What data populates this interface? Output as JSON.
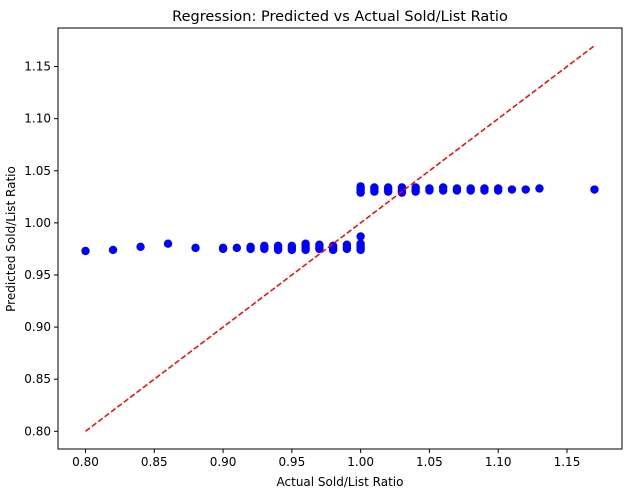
{
  "chart_data": {
    "type": "scatter",
    "title": "Regression: Predicted vs Actual Sold/List Ratio",
    "xlabel": "Actual Sold/List Ratio",
    "ylabel": "Predicted Sold/List Ratio",
    "xlim": [
      0.78,
      1.19
    ],
    "ylim": [
      0.783,
      1.187
    ],
    "xticks": [
      0.8,
      0.85,
      0.9,
      0.95,
      1.0,
      1.05,
      1.1,
      1.15
    ],
    "xtick_labels": [
      "0.80",
      "0.85",
      "0.90",
      "0.95",
      "1.00",
      "1.05",
      "1.10",
      "1.15"
    ],
    "yticks": [
      0.8,
      0.85,
      0.9,
      0.95,
      1.0,
      1.05,
      1.1,
      1.15
    ],
    "ytick_labels": [
      "0.80",
      "0.85",
      "0.90",
      "0.95",
      "1.00",
      "1.05",
      "1.10",
      "1.15"
    ],
    "grid": false,
    "colors": {
      "points": "#0000ff",
      "reference_line": "#ff0000",
      "axes": "#000000"
    },
    "reference_line": {
      "style": "dashed",
      "from": [
        0.8,
        0.8
      ],
      "to": [
        1.17,
        1.17
      ]
    },
    "series": [
      {
        "points": [
          [
            0.8,
            0.973
          ],
          [
            0.82,
            0.974
          ],
          [
            0.84,
            0.977
          ],
          [
            0.86,
            0.98
          ],
          [
            0.88,
            0.976
          ],
          [
            0.9,
            0.975
          ],
          [
            0.9,
            0.976
          ],
          [
            0.91,
            0.976
          ],
          [
            0.92,
            0.975
          ],
          [
            0.92,
            0.977
          ],
          [
            0.93,
            0.975
          ],
          [
            0.93,
            0.977
          ],
          [
            0.93,
            0.978
          ],
          [
            0.94,
            0.974
          ],
          [
            0.94,
            0.976
          ],
          [
            0.94,
            0.978
          ],
          [
            0.95,
            0.974
          ],
          [
            0.95,
            0.976
          ],
          [
            0.95,
            0.978
          ],
          [
            0.96,
            0.974
          ],
          [
            0.96,
            0.976
          ],
          [
            0.96,
            0.978
          ],
          [
            0.96,
            0.98
          ],
          [
            0.97,
            0.975
          ],
          [
            0.97,
            0.977
          ],
          [
            0.97,
            0.979
          ],
          [
            0.98,
            0.974
          ],
          [
            0.98,
            0.976
          ],
          [
            0.98,
            0.978
          ],
          [
            0.99,
            0.975
          ],
          [
            0.99,
            0.977
          ],
          [
            0.99,
            0.979
          ],
          [
            1.0,
            0.974
          ],
          [
            1.0,
            0.976
          ],
          [
            1.0,
            0.978
          ],
          [
            1.0,
            0.98
          ],
          [
            1.0,
            0.987
          ],
          [
            1.0,
            1.029
          ],
          [
            1.0,
            1.031
          ],
          [
            1.0,
            1.033
          ],
          [
            1.0,
            1.035
          ],
          [
            1.01,
            1.03
          ],
          [
            1.01,
            1.032
          ],
          [
            1.01,
            1.034
          ],
          [
            1.02,
            1.03
          ],
          [
            1.02,
            1.032
          ],
          [
            1.02,
            1.034
          ],
          [
            1.03,
            1.029
          ],
          [
            1.03,
            1.031
          ],
          [
            1.03,
            1.034
          ],
          [
            1.04,
            1.03
          ],
          [
            1.04,
            1.032
          ],
          [
            1.04,
            1.034
          ],
          [
            1.05,
            1.031
          ],
          [
            1.05,
            1.033
          ],
          [
            1.06,
            1.031
          ],
          [
            1.06,
            1.034
          ],
          [
            1.07,
            1.031
          ],
          [
            1.07,
            1.033
          ],
          [
            1.08,
            1.031
          ],
          [
            1.08,
            1.033
          ],
          [
            1.09,
            1.031
          ],
          [
            1.09,
            1.033
          ],
          [
            1.1,
            1.031
          ],
          [
            1.1,
            1.033
          ],
          [
            1.11,
            1.032
          ],
          [
            1.12,
            1.032
          ],
          [
            1.13,
            1.033
          ],
          [
            1.17,
            1.032
          ]
        ]
      }
    ]
  }
}
